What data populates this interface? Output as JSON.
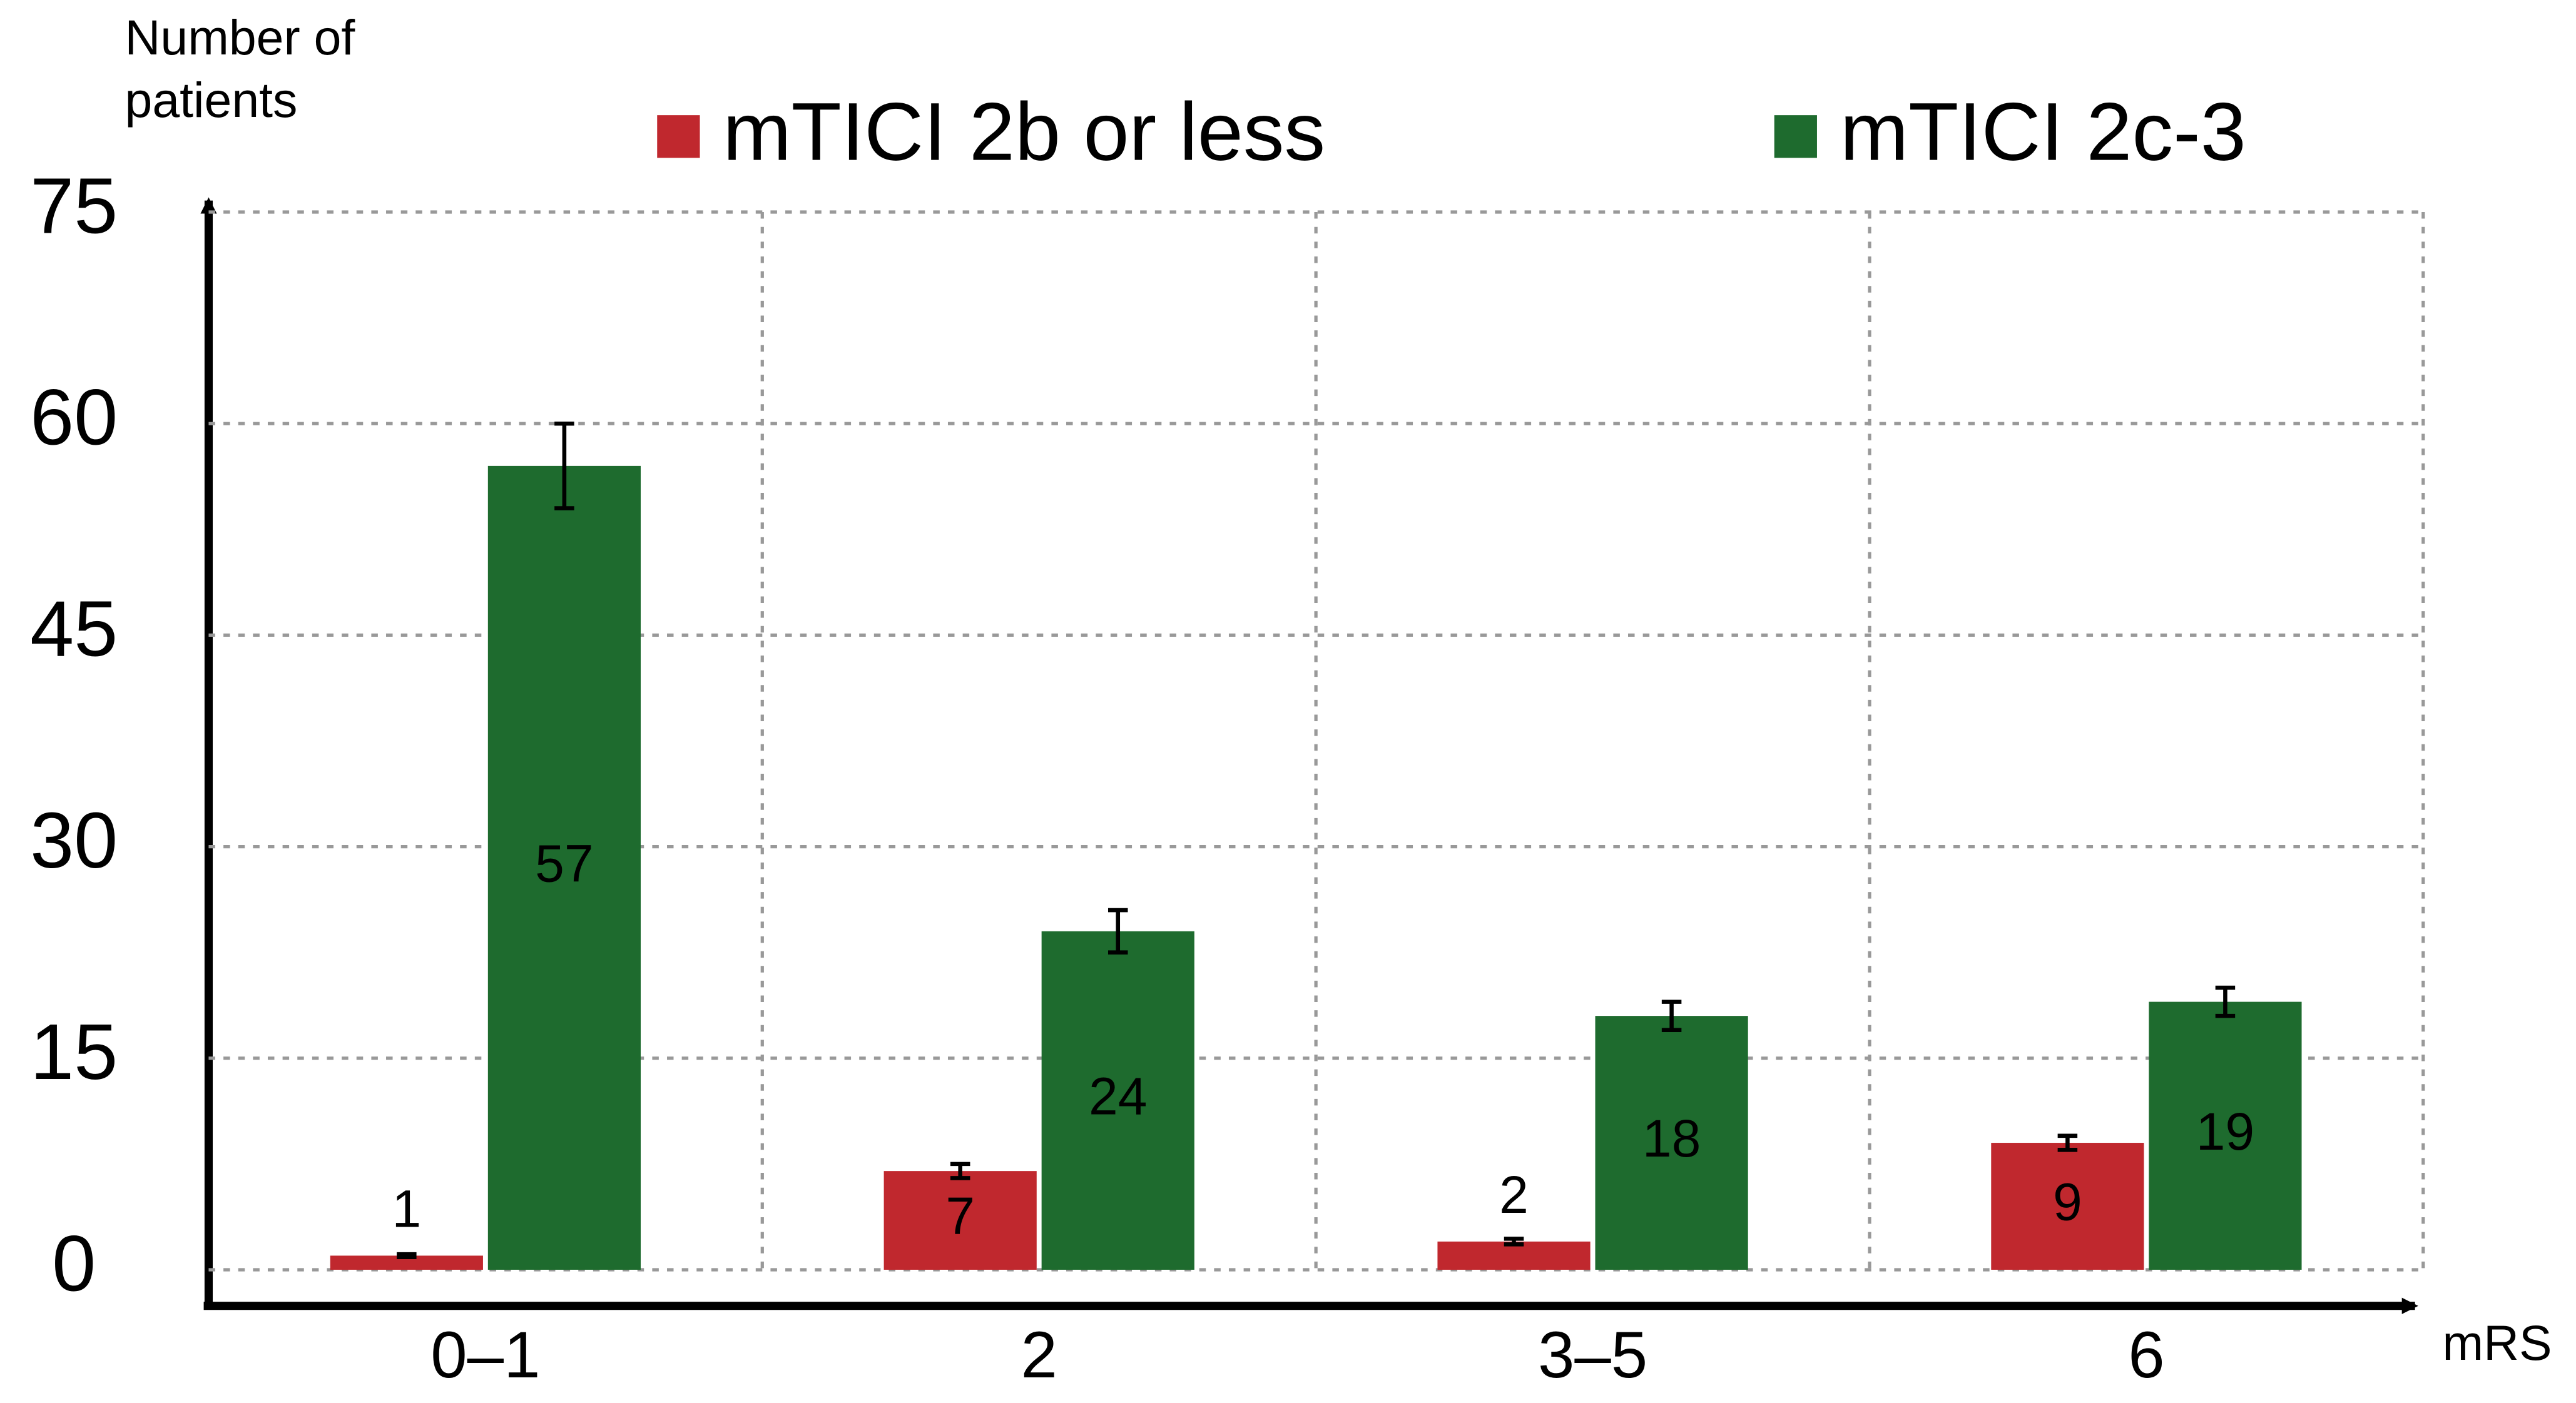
{
  "chart_data": {
    "type": "bar",
    "y_label": "Number of patients",
    "x_label": "mRS",
    "categories": [
      "0–1",
      "2",
      "3–5",
      "6"
    ],
    "series": [
      {
        "name": "mTICI 2b or less",
        "color": "#c0282e",
        "values": [
          1,
          7,
          2,
          9
        ],
        "errors": [
          0.1,
          0.5,
          0.2,
          0.5
        ]
      },
      {
        "name": "mTICI 2c-3",
        "color": "#1e6b2e",
        "values": [
          57,
          24,
          18,
          19
        ],
        "errors": [
          3,
          1.5,
          1,
          1
        ]
      }
    ],
    "ylim": [
      0,
      75
    ],
    "yticks": [
      0,
      15,
      30,
      45,
      60,
      75
    ],
    "grid": true
  }
}
